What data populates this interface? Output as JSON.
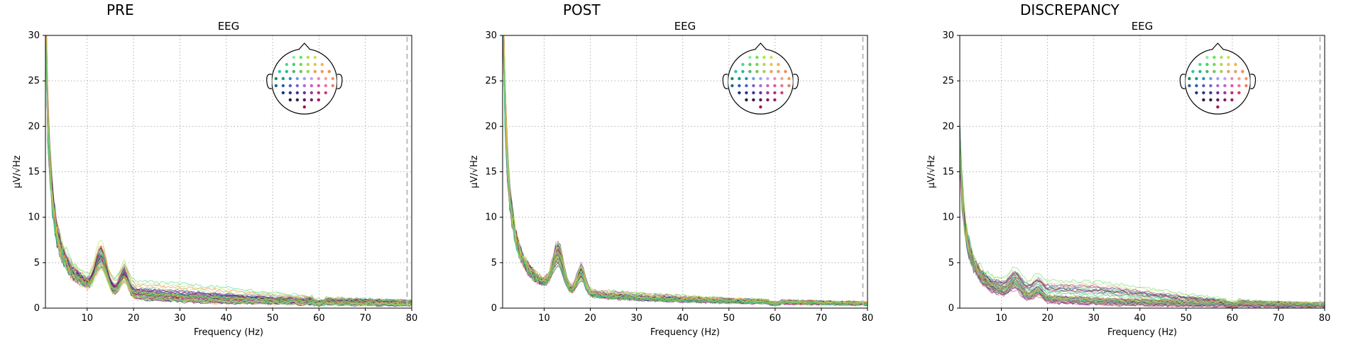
{
  "panels": [
    {
      "id": "pre",
      "title": "PRE",
      "subtitle": "EEG",
      "line_alpha": 0.75,
      "params": {
        "base": 1.0,
        "amp": 28,
        "knee": 1.4,
        "bump": 1.6,
        "spread": 0.55,
        "hi_amp": 0.35,
        "hi_prob": 0.25
      }
    },
    {
      "id": "post",
      "title": "POST",
      "subtitle": "EEG",
      "line_alpha": 0.75,
      "params": {
        "base": 0.9,
        "amp": 28,
        "knee": 1.5,
        "bump": 1.8,
        "spread": 0.3,
        "hi_amp": 0.15,
        "hi_prob": 0.15
      }
    },
    {
      "id": "discrepancy",
      "title": "DISCREPANCY",
      "subtitle": "EEG",
      "line_alpha": 0.6,
      "params": {
        "base": 0.6,
        "amp": 7,
        "knee": 3.2,
        "bump": 0.6,
        "spread": 0.65,
        "hi_amp": 0.55,
        "hi_prob": 0.35
      }
    }
  ],
  "chart_data": {
    "type": "line",
    "xlabel": "Frequency (Hz)",
    "ylabel": "µV/√Hz",
    "xlim": [
      1,
      80
    ],
    "ylim": [
      0,
      30
    ],
    "xticks": [
      10,
      20,
      30,
      40,
      50,
      60,
      70,
      80
    ],
    "yticks": [
      0,
      5,
      10,
      15,
      20,
      25,
      30
    ],
    "grid": true,
    "vline_x": 79,
    "n_channels": 60,
    "inset": "sensor-layout-head",
    "colors": {
      "vline": "#bbbbbb",
      "grid": "#b0b0b0",
      "head": "#000000"
    },
    "sensor_colors": [
      "#86f0a0",
      "#5fe85a",
      "#a8e84a",
      "#cfe05a",
      "#49d98a",
      "#46d460",
      "#6fdb46",
      "#b6d84a",
      "#e3c64a",
      "#f3b34a",
      "#2cc4a8",
      "#2fb788",
      "#4bb46e",
      "#74c25a",
      "#9ecf55",
      "#e8a05a",
      "#f79560",
      "#f68a54",
      "#1f8e5a",
      "#1a9a8a",
      "#2592b8",
      "#6b9fe0",
      "#9aa2ef",
      "#c5a1ef",
      "#f08ab0",
      "#f4a390",
      "#f79a5a",
      "#1f6a8a",
      "#2a5fb0",
      "#4c5fd0",
      "#7a62d8",
      "#a86ad8",
      "#cc5ec8",
      "#e256a0",
      "#f0709a",
      "#f07e62",
      "#1c3a70",
      "#2a3690",
      "#48309a",
      "#70309c",
      "#a03496",
      "#c2287e",
      "#d63a72",
      "#2b1a40",
      "#3a1850",
      "#58185e",
      "#801a66",
      "#a41666",
      "#a0144e"
    ],
    "series_note": "60 EEG channel PSD curves per panel, rendered with per-channel color; values follow a 1/f decay with an alpha peak near 13 Hz, a bump near 18 Hz and a line-noise dip at 60 Hz"
  }
}
